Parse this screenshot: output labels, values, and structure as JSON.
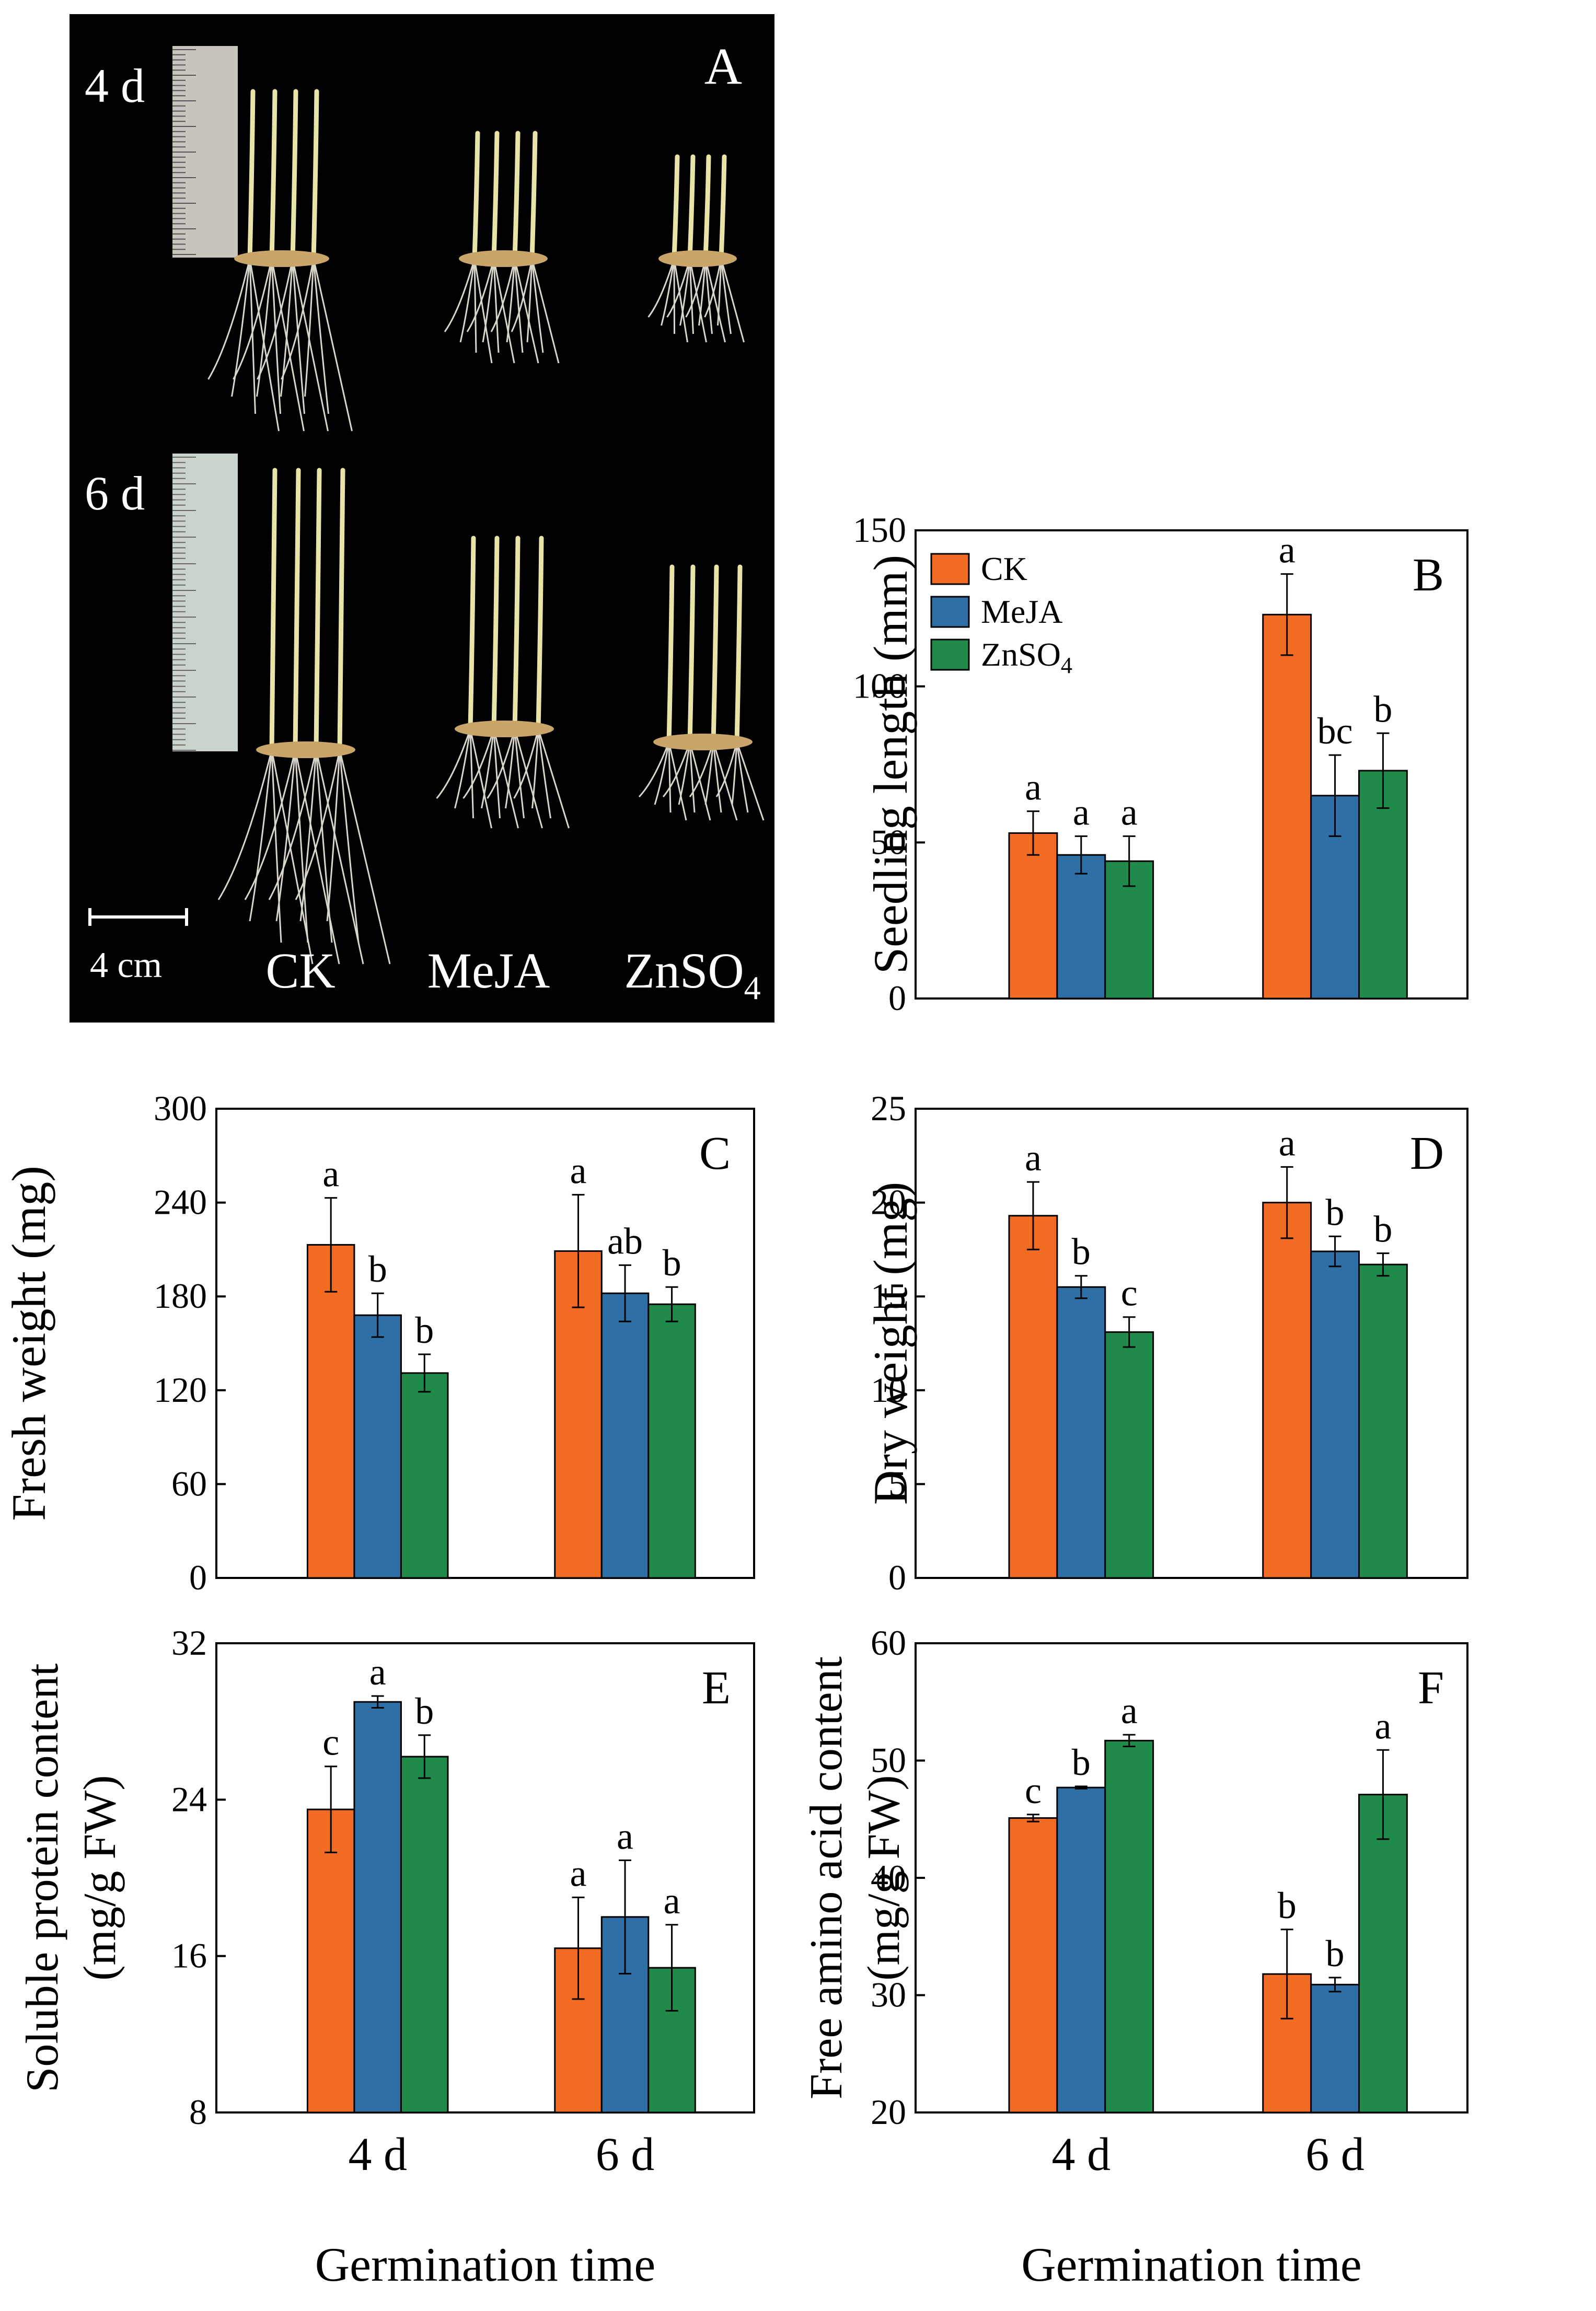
{
  "colors": {
    "CK": "#f26b23",
    "MeJA": "#2e6fa6",
    "ZnSO4": "#1f8a4a",
    "photo_bg": "#000000"
  },
  "photo": {
    "panel_letter": "A",
    "row_labels": [
      "4 d",
      "6 d"
    ],
    "scale_bar": "4 cm",
    "treatments": [
      "CK",
      "MeJA",
      "ZnSO"
    ],
    "treatment_subscript": "4"
  },
  "chart_data": [
    {
      "panel": "B",
      "type": "bar",
      "ylabel": "Seedling length (mm)",
      "xlabel": "",
      "categories": [
        "4 d",
        "6 d"
      ],
      "show_xticklabels": false,
      "ylim": [
        0,
        150
      ],
      "yticks": [
        0,
        50,
        100,
        150
      ],
      "legend": "top-left",
      "series": [
        {
          "name": "CK",
          "values": [
            53,
            123
          ],
          "err": [
            7,
            13
          ],
          "letters": [
            "a",
            "a"
          ]
        },
        {
          "name": "MeJA",
          "values": [
            46,
            65
          ],
          "err": [
            6,
            13
          ],
          "letters": [
            "a",
            "bc"
          ]
        },
        {
          "name": "ZnSO4",
          "values": [
            44,
            73
          ],
          "err": [
            8,
            12
          ],
          "letters": [
            "a",
            "b"
          ]
        }
      ]
    },
    {
      "panel": "C",
      "type": "bar",
      "ylabel": "Fresh weight (mg)",
      "xlabel": "",
      "categories": [
        "4 d",
        "6 d"
      ],
      "show_xticklabels": false,
      "ylim": [
        0,
        300
      ],
      "yticks": [
        0,
        60,
        120,
        180,
        240,
        300
      ],
      "series": [
        {
          "name": "CK",
          "values": [
            213,
            209
          ],
          "err": [
            30,
            36
          ],
          "letters": [
            "a",
            "a"
          ]
        },
        {
          "name": "MeJA",
          "values": [
            168,
            182
          ],
          "err": [
            14,
            18
          ],
          "letters": [
            "b",
            "ab"
          ]
        },
        {
          "name": "ZnSO4",
          "values": [
            131,
            175
          ],
          "err": [
            12,
            11
          ],
          "letters": [
            "b",
            "b"
          ]
        }
      ]
    },
    {
      "panel": "D",
      "type": "bar",
      "ylabel": "Dry weight (mg)",
      "xlabel": "",
      "categories": [
        "4 d",
        "6 d"
      ],
      "show_xticklabels": false,
      "ylim": [
        0,
        25
      ],
      "yticks": [
        0,
        5,
        10,
        15,
        20,
        25
      ],
      "series": [
        {
          "name": "CK",
          "values": [
            19.3,
            20.0
          ],
          "err": [
            1.8,
            1.9
          ],
          "letters": [
            "a",
            "a"
          ]
        },
        {
          "name": "MeJA",
          "values": [
            15.5,
            17.4
          ],
          "err": [
            0.6,
            0.8
          ],
          "letters": [
            "b",
            "b"
          ]
        },
        {
          "name": "ZnSO4",
          "values": [
            13.1,
            16.7
          ],
          "err": [
            0.8,
            0.6
          ],
          "letters": [
            "c",
            "b"
          ]
        }
      ]
    },
    {
      "panel": "E",
      "type": "bar",
      "ylabel": "Soluble protein content",
      "ylabel2": "(mg/g FW)",
      "xlabel": "Germination  time",
      "categories": [
        "4 d",
        "6 d"
      ],
      "show_xticklabels": true,
      "ylim": [
        8,
        32
      ],
      "yticks": [
        8,
        16,
        24,
        32
      ],
      "series": [
        {
          "name": "CK",
          "values": [
            23.5,
            16.4
          ],
          "err": [
            2.2,
            2.6
          ],
          "letters": [
            "c",
            "a"
          ]
        },
        {
          "name": "MeJA",
          "values": [
            29.0,
            18.0
          ],
          "err": [
            0.3,
            2.9
          ],
          "letters": [
            "a",
            "a"
          ]
        },
        {
          "name": "ZnSO4",
          "values": [
            26.2,
            15.4
          ],
          "err": [
            1.1,
            2.2
          ],
          "letters": [
            "b",
            "a"
          ]
        }
      ]
    },
    {
      "panel": "F",
      "type": "bar",
      "ylabel": "Free amino acid content",
      "ylabel2": "(mg/g FW)",
      "xlabel": "Germination  time",
      "categories": [
        "4 d",
        "6 d"
      ],
      "show_xticklabels": true,
      "ylim": [
        20,
        60
      ],
      "yticks": [
        20,
        30,
        40,
        50,
        60
      ],
      "series": [
        {
          "name": "CK",
          "values": [
            45.1,
            31.8
          ],
          "err": [
            0.3,
            3.8
          ],
          "letters": [
            "c",
            "b"
          ]
        },
        {
          "name": "MeJA",
          "values": [
            47.7,
            30.9
          ],
          "err": [
            0.1,
            0.6
          ],
          "letters": [
            "b",
            "b"
          ]
        },
        {
          "name": "ZnSO4",
          "values": [
            51.7,
            47.1
          ],
          "err": [
            0.5,
            3.8
          ],
          "letters": [
            "a",
            "a"
          ]
        }
      ]
    }
  ]
}
